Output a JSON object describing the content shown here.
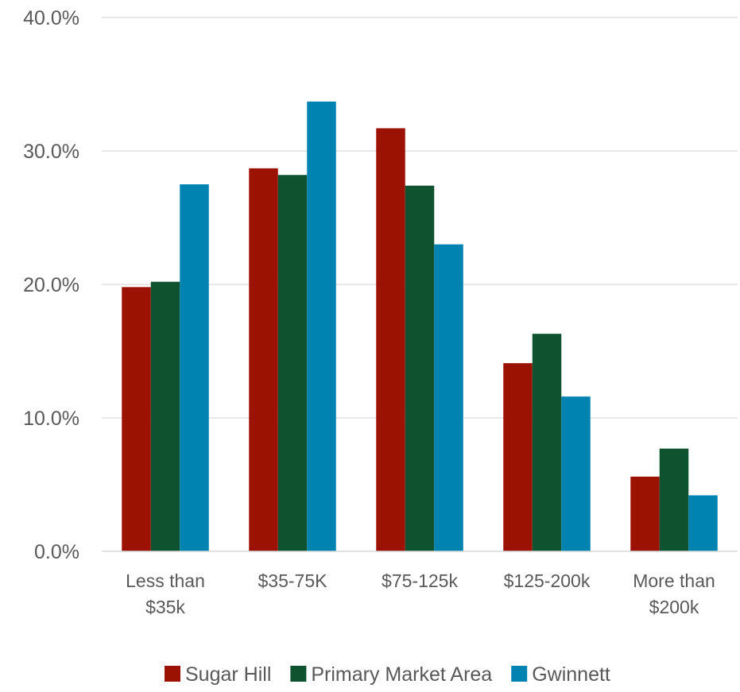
{
  "chart_data": {
    "type": "bar",
    "title": "",
    "xlabel": "",
    "ylabel": "",
    "categories": [
      [
        "Less than",
        "$35k"
      ],
      [
        "$35-75K"
      ],
      [
        "$75-125k"
      ],
      [
        "$125-200k"
      ],
      [
        "More than",
        "$200k"
      ]
    ],
    "series": [
      {
        "name": "Sugar Hill",
        "color": "#9B1102",
        "values": [
          19.8,
          28.7,
          31.7,
          14.1,
          5.6
        ]
      },
      {
        "name": "Primary Market Area",
        "color": "#0E5230",
        "values": [
          20.2,
          28.2,
          27.4,
          16.3,
          7.7
        ]
      },
      {
        "name": "Gwinnett",
        "color": "#0083B0",
        "values": [
          27.5,
          33.7,
          23.0,
          11.6,
          4.2
        ]
      }
    ],
    "ylim": [
      0,
      40
    ],
    "yticks": [
      "0.0%",
      "10.0%",
      "20.0%",
      "30.0%",
      "40.0%"
    ],
    "grid": true,
    "legend_position": "bottom"
  }
}
